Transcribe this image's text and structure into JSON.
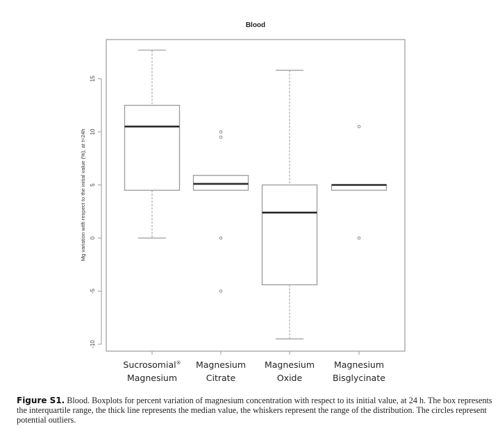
{
  "chart_data": {
    "type": "boxplot",
    "title": "Blood",
    "xlabel": "",
    "ylabel": "Mg variation with respect to the initial value (%), at t=24h",
    "ylim": [
      -10.5,
      18.7
    ],
    "yticks": [
      -10,
      -5,
      0,
      5,
      10,
      15
    ],
    "grid": false,
    "legend": null,
    "categories": [
      [
        "Sucrosomial®",
        "Magnesium"
      ],
      [
        "Magnesium",
        "Citrate"
      ],
      [
        "Magnesium",
        "Oxide"
      ],
      [
        "Magnesium",
        "Bisglycinate"
      ]
    ],
    "series": [
      {
        "name": "Sucrosomial® Magnesium",
        "whisker_low": 0.0,
        "q1": 4.5,
        "median": 10.5,
        "q3": 12.5,
        "whisker_high": 17.7,
        "outliers": []
      },
      {
        "name": "Magnesium Citrate",
        "whisker_low": 4.5,
        "q1": 4.5,
        "median": 5.1,
        "q3": 5.9,
        "whisker_high": 5.9,
        "outliers": [
          10.0,
          9.5,
          0.0,
          -5.0
        ]
      },
      {
        "name": "Magnesium Oxide",
        "whisker_low": -9.5,
        "q1": -4.4,
        "median": 2.4,
        "q3": 5.0,
        "whisker_high": 15.8,
        "outliers": []
      },
      {
        "name": "Magnesium Bisglycinate",
        "whisker_low": 4.5,
        "q1": 4.5,
        "median": 5.0,
        "q3": 5.0,
        "whisker_high": 5.0,
        "outliers": [
          10.5,
          0.0
        ]
      }
    ]
  },
  "caption": {
    "label": "Figure S1.",
    "text": " Blood. Boxplots for percent variation of magnesium concentration with respect to its initial value, at 24 h. The box represents the interquartile range, the thick line represents the median value, the whiskers represent the range of the distribution. The circles represent potential outliers."
  },
  "style": {
    "frame_color": "#9a9a9a",
    "box_color": "#9a9a9a",
    "median_color": "#2a2a2a",
    "whisker_color": "#9a9a9a",
    "outlier_color": "#8a8a8a"
  }
}
